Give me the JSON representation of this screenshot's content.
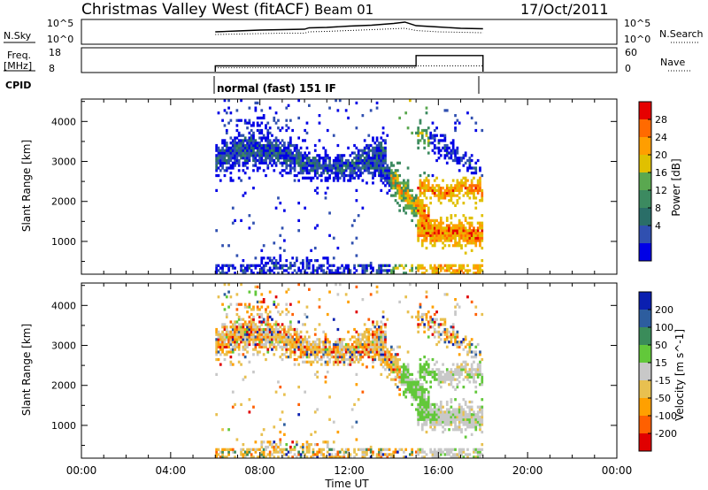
{
  "header": {
    "station": "Christmas Valley West (fitACF)",
    "beam": "Beam 01",
    "date": "17/Oct/2011"
  },
  "noise_panel": {
    "left_label": "N.Sky",
    "right_label": "N.Search",
    "ticks_left": [
      "10^5",
      "10^0"
    ],
    "ticks_right": [
      "10^5",
      "10^0"
    ]
  },
  "freq_panel": {
    "left_label_1": "Freq.",
    "left_label_2": "[MHz]",
    "ticks_left": [
      "18",
      "8"
    ],
    "ticks_right": [
      "60",
      "0"
    ],
    "right_label": "Nave"
  },
  "cpid": {
    "label": "CPID",
    "mode": "normal (fast) 151 IF"
  },
  "colors": {
    "power": [
      "#0000e6",
      "#3050b0",
      "#2a6e68",
      "#3c8a60",
      "#5aa850",
      "#e0c000",
      "#ff9e00",
      "#ff6a00",
      "#e60000"
    ],
    "velocity": [
      "#0a1fb0",
      "#2d5d9e",
      "#3a8c5a",
      "#62c83a",
      "#c8c8c8",
      "#e8c050",
      "#ffa000",
      "#ff6000",
      "#e00000"
    ]
  },
  "chart_data": [
    {
      "type": "heatmap",
      "name": "power",
      "ylabel": "Slant Range [km]",
      "yticks": [
        1000,
        2000,
        3000,
        4000
      ],
      "ylim": [
        180,
        4560
      ],
      "xlim": [
        0,
        24
      ],
      "colorbar": {
        "label": "Power [dB]",
        "ticks": [
          "4",
          "8",
          "12",
          "16",
          "20",
          "24",
          "28"
        ],
        "range": [
          0,
          32
        ]
      },
      "features": [
        {
          "desc": "band near 3000 km",
          "t_start": 6,
          "t_end": 13.5,
          "range_km": [
            2600,
            3500
          ]
        },
        {
          "desc": "descending echo",
          "t_start": 13.5,
          "t_end": 15.5,
          "range_km": [
            1300,
            3000
          ]
        },
        {
          "desc": "high-power stripes after 15 UT",
          "t_start": 15.2,
          "t_end": 18,
          "range_km": [
            900,
            2500
          ]
        },
        {
          "desc": "near-range scatter",
          "t_start": 6,
          "t_end": 18,
          "range_km": [
            180,
            500
          ]
        }
      ]
    },
    {
      "type": "heatmap",
      "name": "velocity",
      "ylabel": "Slant Range [km]",
      "yticks": [
        1000,
        2000,
        3000,
        4000
      ],
      "ylim": [
        180,
        4560
      ],
      "xlim": [
        0,
        24
      ],
      "xlabel": "Time UT",
      "xticks": [
        "00:00",
        "04:00",
        "08:00",
        "12:00",
        "16:00",
        "20:00",
        "00:00"
      ],
      "colorbar": {
        "label": "Velocity [m s^-1]",
        "ticks": [
          "200",
          "100",
          "50",
          "15",
          "-15",
          "-50",
          "-100",
          "-200"
        ],
        "range": [
          -250,
          250
        ]
      }
    }
  ],
  "series_noise": {
    "x": [
      6,
      7,
      8,
      9,
      10,
      10.2,
      11,
      12,
      13,
      14,
      14.5,
      15,
      16,
      17,
      18
    ],
    "sky": [
      2.6,
      2.8,
      3.0,
      3.1,
      3.2,
      3.5,
      3.6,
      3.9,
      4.1,
      4.5,
      4.8,
      4.0,
      3.7,
      3.4,
      3.3
    ],
    "search": [
      2.0,
      2.1,
      2.2,
      2.3,
      2.3,
      2.6,
      2.7,
      2.9,
      3.1,
      3.3,
      3.4,
      2.9,
      2.6,
      2.5,
      2.4
    ]
  },
  "series_freq": {
    "x": [
      6,
      15,
      15,
      18
    ],
    "freq": [
      10.5,
      10.5,
      15.0,
      15.0
    ],
    "nave": [
      10,
      10,
      15,
      15
    ]
  }
}
